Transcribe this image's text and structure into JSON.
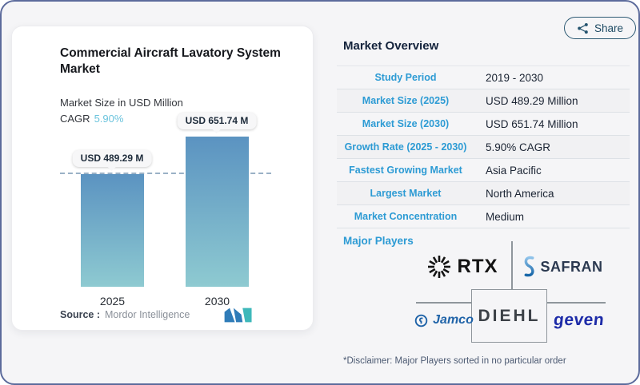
{
  "colors": {
    "label_blue": "#2D9BD4",
    "cagr_teal": "#6CC4DD",
    "bar_gradient_top": "#5B93C1",
    "bar_gradient_bottom": "#8ECAD1",
    "share_accent": "#2D5A74",
    "frame_border": "#5C6B9C"
  },
  "left_card": {
    "title": "Commercial Aircraft Lavatory System Market",
    "subtitle": "Market Size in USD Million",
    "cagr_label": "CAGR",
    "cagr_value": "5.90%",
    "source_label": "Source :",
    "source_value": "Mordor Intelligence"
  },
  "chart_data": {
    "type": "bar",
    "categories": [
      "2025",
      "2030"
    ],
    "values": [
      489.29,
      651.74
    ],
    "bar_labels": [
      "USD 489.29 M",
      "USD 651.74 M"
    ],
    "title": "Commercial Aircraft Lavatory System Market",
    "ylabel": "Market Size in USD Million",
    "ylim": [
      0,
      651.74
    ],
    "reference_line": 489.29,
    "legend": "none",
    "grid": "off"
  },
  "share": {
    "label": "Share"
  },
  "overview": {
    "heading": "Market Overview",
    "rows": [
      {
        "label": "Study Period",
        "value": "2019 - 2030"
      },
      {
        "label": "Market Size (2025)",
        "value": "USD 489.29 Million"
      },
      {
        "label": "Market Size (2030)",
        "value": "USD 651.74 Million"
      },
      {
        "label": "Growth Rate (2025 - 2030)",
        "value": "5.90% CAGR"
      },
      {
        "label": "Fastest Growing Market",
        "value": "Asia Pacific"
      },
      {
        "label": "Largest Market",
        "value": "North America"
      },
      {
        "label": "Market Concentration",
        "value": "Medium"
      }
    ],
    "major_players_label": "Major Players",
    "players": [
      {
        "name": "RTX"
      },
      {
        "name": "SAFRAN"
      },
      {
        "name": "Jamco"
      },
      {
        "name": "DIEHL"
      },
      {
        "name": "geven"
      }
    ],
    "disclaimer": "*Disclaimer: Major Players sorted in no particular order"
  }
}
